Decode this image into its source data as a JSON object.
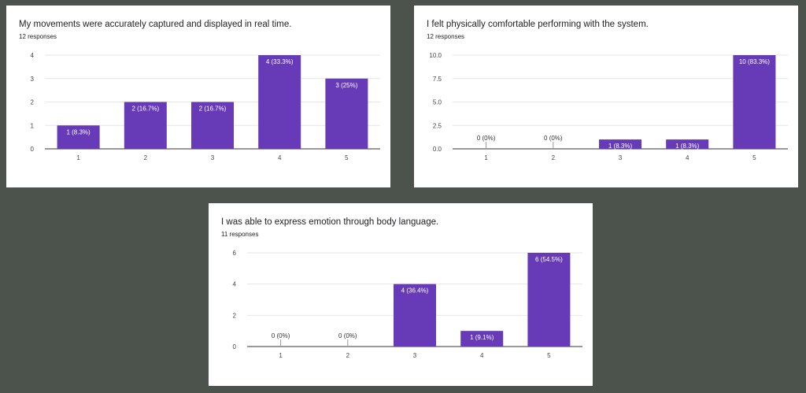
{
  "page": {
    "background": "#4c534c"
  },
  "cards": [
    {
      "title": "My movements were accurately captured and displayed in real time.",
      "responses": "12 responses"
    },
    {
      "title": "I felt physically comfortable performing with the system.",
      "responses": "12 responses"
    },
    {
      "title": "I was able to express emotion through body language.",
      "responses": "11 responses"
    }
  ],
  "chart_data": [
    {
      "type": "bar",
      "title": "My movements were accurately captured and displayed in real time.",
      "subtitle": "12 responses",
      "categories": [
        "1",
        "2",
        "3",
        "4",
        "5"
      ],
      "values": [
        1,
        2,
        2,
        4,
        3
      ],
      "data_labels": [
        "1 (8.3%)",
        "2 (16.7%)",
        "2 (16.7%)",
        "4 (33.3%)",
        "3 (25%)"
      ],
      "y_ticks": [
        "0",
        "1",
        "2",
        "3",
        "4"
      ],
      "ylim": [
        0,
        4
      ],
      "bar_color": "#673ab7",
      "grid": true
    },
    {
      "type": "bar",
      "title": "I felt physically comfortable performing with the system.",
      "subtitle": "12 responses",
      "categories": [
        "1",
        "2",
        "3",
        "4",
        "5"
      ],
      "values": [
        0,
        0,
        1,
        1,
        10
      ],
      "data_labels": [
        "0 (0%)",
        "0 (0%)",
        "1 (8.3%)",
        "1 (8.3%)",
        "10 (83.3%)"
      ],
      "y_ticks": [
        "0.0",
        "2.5",
        "5.0",
        "7.5",
        "10.0"
      ],
      "ylim": [
        0,
        10
      ],
      "bar_color": "#673ab7",
      "grid": true
    },
    {
      "type": "bar",
      "title": "I was able to express emotion through body language.",
      "subtitle": "11 responses",
      "categories": [
        "1",
        "2",
        "3",
        "4",
        "5"
      ],
      "values": [
        0,
        0,
        4,
        1,
        6
      ],
      "data_labels": [
        "0 (0%)",
        "0 (0%)",
        "4 (36.4%)",
        "1 (9.1%)",
        "6 (54.5%)"
      ],
      "y_ticks": [
        "0",
        "2",
        "4",
        "6"
      ],
      "ylim": [
        0,
        6
      ],
      "bar_color": "#673ab7",
      "grid": true
    }
  ]
}
